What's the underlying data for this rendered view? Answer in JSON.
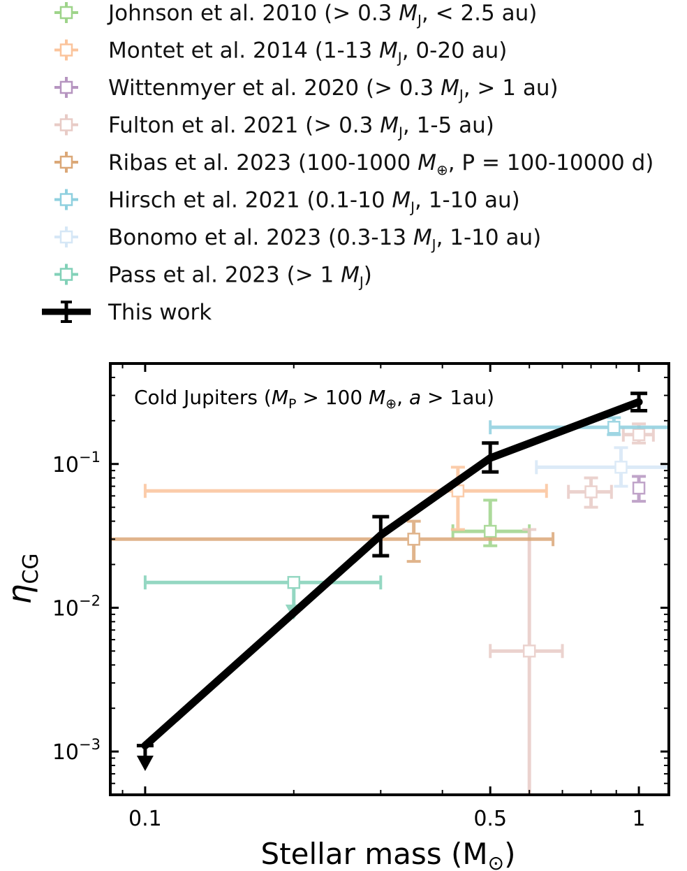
{
  "chart_data": {
    "type": "scatter",
    "annotation_prefix": "Cold Jupiters (",
    "annotation_mass_symbol": "M",
    "annotation_mass_sub": "P",
    "annotation_mass_rest": " > 100 ",
    "annotation_earth_symbol": "M",
    "annotation_earth_sub": "⊕",
    "annotation_sep": ",  ",
    "annotation_a": "a",
    "annotation_suffix": " > 1au)",
    "xlabel": "Stellar mass (M",
    "xlabel_sub": "⊙",
    "xlabel_close": ")",
    "ylabel_eta": "η",
    "ylabel_sub": "CG",
    "xscale": "log",
    "yscale": "log",
    "xlim": [
      0.085,
      1.15
    ],
    "ylim": [
      0.0005,
      0.5
    ],
    "x_ticks": [
      {
        "value": 0.1,
        "label": "0.1"
      },
      {
        "value": 0.5,
        "label": "0.5"
      },
      {
        "value": 1,
        "label": "1"
      }
    ],
    "y_ticks": [
      {
        "value": 0.1,
        "base": "10",
        "exp": "−1"
      },
      {
        "value": 0.01,
        "base": "10",
        "exp": "−2"
      },
      {
        "value": 0.001,
        "base": "10",
        "exp": "−3"
      }
    ],
    "legend_placement": "above plot",
    "series": [
      {
        "label_pre": "Johnson et al. 2010 (> 0.3 ",
        "label_M": "M",
        "label_sub": "J",
        "label_post": ", < 2.5 au)",
        "color": "#9ed48a",
        "points": [
          {
            "x": 0.5,
            "y": 0.034,
            "xerr": [
              0.42,
              0.6
            ],
            "yerr": [
              0.027,
              0.056
            ]
          }
        ]
      },
      {
        "label_pre": "Montet et al. 2014 (1-13 ",
        "label_M": "M",
        "label_sub": "J",
        "label_post": ", 0-20 au)",
        "color": "#fbc49c",
        "points": [
          {
            "x": 0.43,
            "y": 0.065,
            "xerr": [
              0.1,
              0.65
            ],
            "yerr": [
              0.035,
              0.095
            ]
          }
        ]
      },
      {
        "label_pre": "Wittenmyer et al. 2020 (> 0.3 ",
        "label_M": "M",
        "label_sub": "J",
        "label_post": ", > 1 au)",
        "color": "#b695c0",
        "points": [
          {
            "x": 1.0,
            "y": 0.068,
            "xerr": [
              1.0,
              1.0
            ],
            "yerr": [
              0.055,
              0.082
            ]
          }
        ]
      },
      {
        "label_pre": "Fulton et al. 2021 (> 0.3 ",
        "label_M": "M",
        "label_sub": "J",
        "label_post": ", 1-5 au)",
        "color": "#e8cbc6",
        "points": [
          {
            "x": 0.6,
            "y": 0.005,
            "xerr": [
              0.5,
              0.7
            ],
            "yerr": [
              0.0005,
              0.035
            ]
          },
          {
            "x": 0.8,
            "y": 0.064,
            "xerr": [
              0.72,
              0.88
            ],
            "yerr": [
              0.05,
              0.08
            ]
          },
          {
            "x": 1.0,
            "y": 0.16,
            "xerr": [
              0.93,
              1.07
            ],
            "yerr": [
              0.14,
              0.19
            ]
          }
        ]
      },
      {
        "label_pre": "Ribas et al. 2023 (100-1000 ",
        "label_M": "M",
        "label_sub": "⊕",
        "label_post": ", P = 100-10000 d)",
        "color": "#dba878",
        "points": [
          {
            "x": 0.35,
            "y": 0.03,
            "xerr": [
              0.085,
              0.67
            ],
            "yerr": [
              0.021,
              0.04
            ]
          }
        ]
      },
      {
        "label_pre": "Hirsch et al. 2021 (0.1-10 ",
        "label_M": "M",
        "label_sub": "J",
        "label_post": ", 1-10 au)",
        "color": "#8fd0df",
        "points": [
          {
            "x": 0.89,
            "y": 0.18,
            "xerr": [
              0.5,
              1.15
            ],
            "yerr": [
              0.16,
              0.21
            ]
          }
        ]
      },
      {
        "label_pre": "Bonomo et al. 2023 (0.3-13 ",
        "label_M": "M",
        "label_sub": "J",
        "label_post": ", 1-10 au)",
        "color": "#d6e7f6",
        "points": [
          {
            "x": 0.92,
            "y": 0.095,
            "xerr": [
              0.62,
              1.15
            ],
            "yerr": [
              0.07,
              0.13
            ]
          }
        ]
      },
      {
        "label_pre": "Pass et al. 2023 (> 1 ",
        "label_M": "M",
        "label_sub": "J",
        "label_post": ")",
        "color": "#82d1b8",
        "upper_limit": true,
        "points": [
          {
            "x": 0.2,
            "y": 0.015,
            "xerr": [
              0.1,
              0.3
            ],
            "yerr": [
              0.009,
              0.015
            ]
          }
        ]
      },
      {
        "label_pre": "This work",
        "label_M": "",
        "label_sub": "",
        "label_post": "",
        "color": "#000000",
        "line": true,
        "points": [
          {
            "x": 0.1,
            "y": 0.0011,
            "yerr": [
              0.0008,
              0.0011
            ],
            "upper_limit": true
          },
          {
            "x": 0.3,
            "y": 0.032,
            "yerr": [
              0.023,
              0.043
            ]
          },
          {
            "x": 0.5,
            "y": 0.11,
            "yerr": [
              0.088,
              0.14
            ]
          },
          {
            "x": 1.0,
            "y": 0.27,
            "yerr": [
              0.235,
              0.31
            ]
          }
        ]
      }
    ]
  }
}
